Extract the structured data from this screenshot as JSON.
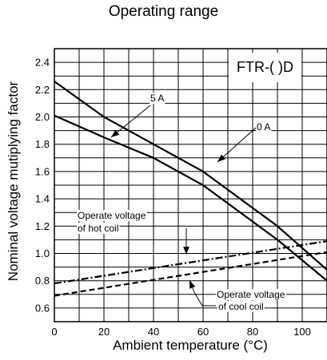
{
  "chart_data": {
    "type": "line",
    "title": "Operating range",
    "model_label": "FTR-( )D",
    "xlabel": "Ambient temperature (°C)",
    "ylabel": "Nominal voltage mutiplying factor",
    "xlim": [
      0,
      110
    ],
    "ylim": [
      0.5,
      2.5
    ],
    "x_ticks": [
      0,
      20,
      40,
      60,
      80,
      100
    ],
    "y_ticks": [
      0.6,
      0.8,
      1.0,
      1.2,
      1.4,
      1.6,
      1.8,
      2.0,
      2.2,
      2.4
    ],
    "grid": true,
    "series": [
      {
        "name": "5 A",
        "style": "solid",
        "x": [
          0,
          20,
          40,
          60,
          90,
          110
        ],
        "y": [
          2.26,
          2.0,
          1.8,
          1.6,
          1.2,
          0.88
        ]
      },
      {
        "name": "0 A",
        "style": "solid",
        "x": [
          0,
          20,
          40,
          60,
          90,
          110
        ],
        "y": [
          2.01,
          1.85,
          1.7,
          1.5,
          1.1,
          0.8
        ]
      },
      {
        "name": "Operate voltage of hot coil",
        "style": "dashdot",
        "x": [
          0,
          110
        ],
        "y": [
          0.78,
          1.09
        ]
      },
      {
        "name": "Operate voltage of cool coil",
        "style": "dashed",
        "x": [
          0,
          110
        ],
        "y": [
          0.69,
          1.01
        ]
      }
    ],
    "annotations": {
      "five_a": "5 A",
      "zero_a": "0 A",
      "hot_line1": "Operate voltage",
      "hot_line2": "of hot coil",
      "cool_line1": "Operate voltage",
      "cool_line2": "of cool coil"
    }
  }
}
